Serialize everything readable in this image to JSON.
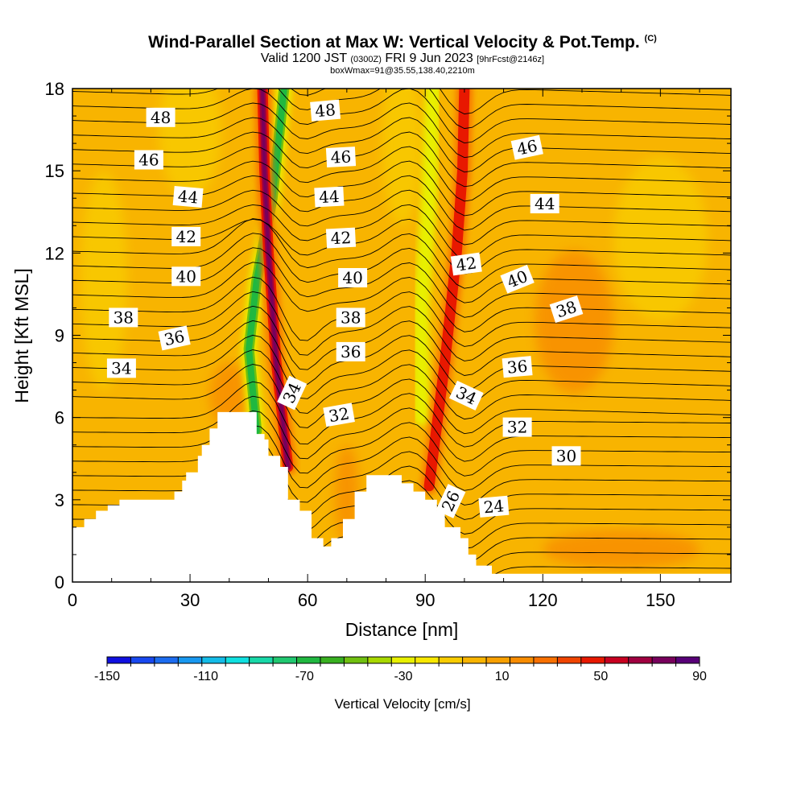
{
  "title": {
    "main": "Wind-Parallel Section at Max W: Vertical Velocity & Pot.Temp.",
    "copyright": "(C)",
    "valid_prefix": "Valid 1200 JST",
    "valid_utc": "(0300Z)",
    "valid_date": "FRI 9 Jun 2023",
    "forecast": "[9hrFcst@2146z]",
    "box_info": "boxWmax=91@35.55,138.40,2210m"
  },
  "chart_data": {
    "type": "heatmap",
    "xlabel": "Distance [nm]",
    "ylabel": "Height [Kft MSL]",
    "xlim": [
      0,
      168
    ],
    "ylim": [
      0,
      18
    ],
    "x_ticks": [
      "0",
      "30",
      "60",
      "90",
      "120",
      "150"
    ],
    "x_tick_values": [
      0,
      30,
      60,
      90,
      120,
      150
    ],
    "y_ticks": [
      "0",
      "3",
      "6",
      "9",
      "12",
      "15",
      "18"
    ],
    "y_tick_values": [
      0,
      3,
      6,
      9,
      12,
      15,
      18
    ],
    "colorbar": {
      "title": "Vertical Velocity [cm/s]",
      "labels": [
        "-150",
        "-110",
        "-70",
        "-30",
        "10",
        "50",
        "90"
      ],
      "label_values": [
        -150,
        -110,
        -70,
        -30,
        10,
        50,
        90
      ],
      "levels": [
        -150,
        -140,
        -130,
        -120,
        -110,
        -100,
        -90,
        -80,
        -70,
        -60,
        -50,
        -40,
        -30,
        -20,
        -10,
        0,
        10,
        20,
        30,
        40,
        50,
        60,
        70,
        80,
        90
      ],
      "colors": [
        "#1010e0",
        "#1848f0",
        "#1c6cf0",
        "#1898f0",
        "#14bce8",
        "#10e0e0",
        "#18d8a8",
        "#20c870",
        "#20b840",
        "#38b020",
        "#70c010",
        "#a8d800",
        "#e8f000",
        "#f8e800",
        "#f8cc00",
        "#f8b400",
        "#f8a000",
        "#f88c00",
        "#f87000",
        "#f04400",
        "#e81800",
        "#c80020",
        "#a00040",
        "#78005c",
        "#580078"
      ]
    },
    "background_value_cm_s": 5,
    "updraft_bands": [
      {
        "name": "band-1",
        "w_peak": 90,
        "path": [
          [
            55,
            4.2
          ],
          [
            52,
            8
          ],
          [
            50,
            12
          ],
          [
            49,
            15
          ],
          [
            48.5,
            18
          ]
        ]
      },
      {
        "name": "band-2",
        "w_peak": 55,
        "path": [
          [
            91,
            3.5
          ],
          [
            95,
            8
          ],
          [
            98,
            12
          ],
          [
            99.5,
            15
          ],
          [
            100,
            18
          ]
        ]
      }
    ],
    "downdraft_bands": [
      {
        "name": "band-1",
        "w_peak": -70,
        "path": [
          [
            47,
            5.5
          ],
          [
            45,
            8.5
          ],
          [
            47,
            11
          ],
          [
            51,
            14
          ],
          [
            54,
            18
          ]
        ]
      },
      {
        "name": "band-2",
        "w_peak": -40,
        "path": [
          [
            89,
            6
          ],
          [
            89,
            10
          ],
          [
            91,
            14
          ],
          [
            92,
            18
          ]
        ]
      }
    ],
    "terrain": [
      [
        0,
        1
      ],
      [
        0,
        2
      ],
      [
        3,
        2
      ],
      [
        3,
        2.3
      ],
      [
        6,
        2.3
      ],
      [
        6,
        2.6
      ],
      [
        9,
        2.6
      ],
      [
        9,
        2.8
      ],
      [
        12,
        2.8
      ],
      [
        12,
        3
      ],
      [
        26,
        3
      ],
      [
        26,
        3.3
      ],
      [
        28,
        3.3
      ],
      [
        28,
        3.7
      ],
      [
        29,
        3.7
      ],
      [
        29,
        4
      ],
      [
        32,
        4
      ],
      [
        32,
        4.6
      ],
      [
        33,
        4.6
      ],
      [
        33,
        5
      ],
      [
        35,
        5
      ],
      [
        35,
        5.6
      ],
      [
        37,
        5.6
      ],
      [
        37,
        6.2
      ],
      [
        47,
        6.2
      ],
      [
        47,
        5.4
      ],
      [
        49,
        5.4
      ],
      [
        49,
        5.2
      ],
      [
        50,
        5.2
      ],
      [
        50,
        4.6
      ],
      [
        53,
        4.6
      ],
      [
        53,
        4.2
      ],
      [
        55,
        4.2
      ],
      [
        55,
        3
      ],
      [
        58,
        3
      ],
      [
        58,
        2.6
      ],
      [
        61,
        2.6
      ],
      [
        61,
        1.6
      ],
      [
        64,
        1.6
      ],
      [
        64,
        1.3
      ],
      [
        66,
        1.3
      ],
      [
        66,
        1.6
      ],
      [
        69,
        1.6
      ],
      [
        69,
        2.3
      ],
      [
        72,
        2.3
      ],
      [
        72,
        3.3
      ],
      [
        75,
        3.3
      ],
      [
        75,
        3.9
      ],
      [
        84,
        3.9
      ],
      [
        84,
        3.6
      ],
      [
        87,
        3.6
      ],
      [
        87,
        3.3
      ],
      [
        90,
        3.3
      ],
      [
        90,
        3
      ],
      [
        93,
        3
      ],
      [
        93,
        2.6
      ],
      [
        95,
        2.6
      ],
      [
        95,
        2
      ],
      [
        99,
        2
      ],
      [
        99,
        1.6
      ],
      [
        101,
        1.6
      ],
      [
        101,
        1
      ],
      [
        103,
        1
      ],
      [
        103,
        0.6
      ],
      [
        107,
        0.6
      ],
      [
        107,
        0.3
      ],
      [
        168,
        0.3
      ],
      [
        168,
        0
      ],
      [
        0,
        0
      ]
    ],
    "theta_contours": [
      {
        "label": "48",
        "x": 22.5,
        "y": 16.95,
        "rot": 0
      },
      {
        "label": "48",
        "x": 64.5,
        "y": 17.2,
        "rot": -5
      },
      {
        "label": "46",
        "x": 19.5,
        "y": 15.4,
        "rot": 0
      },
      {
        "label": "46",
        "x": 68.5,
        "y": 15.5,
        "rot": -3
      },
      {
        "label": "46",
        "x": 116,
        "y": 15.85,
        "rot": -12
      },
      {
        "label": "44",
        "x": 29.5,
        "y": 14.05,
        "rot": 5
      },
      {
        "label": "44",
        "x": 65.5,
        "y": 14.05,
        "rot": -3
      },
      {
        "label": "44",
        "x": 120.5,
        "y": 13.8,
        "rot": 0
      },
      {
        "label": "42",
        "x": 29,
        "y": 12.6,
        "rot": 0
      },
      {
        "label": "42",
        "x": 68.5,
        "y": 12.55,
        "rot": -3
      },
      {
        "label": "42",
        "x": 100.5,
        "y": 11.6,
        "rot": -8
      },
      {
        "label": "40",
        "x": 29,
        "y": 11.15,
        "rot": 0
      },
      {
        "label": "40",
        "x": 71.5,
        "y": 11.1,
        "rot": 0
      },
      {
        "label": "40",
        "x": 113.5,
        "y": 11.05,
        "rot": -22
      },
      {
        "label": "38",
        "x": 13,
        "y": 9.65,
        "rot": 0
      },
      {
        "label": "38",
        "x": 71,
        "y": 9.65,
        "rot": 0
      },
      {
        "label": "38",
        "x": 126,
        "y": 9.95,
        "rot": -18
      },
      {
        "label": "36",
        "x": 26,
        "y": 8.9,
        "rot": -12
      },
      {
        "label": "36",
        "x": 71,
        "y": 8.4,
        "rot": 0
      },
      {
        "label": "36",
        "x": 113.5,
        "y": 7.85,
        "rot": -5
      },
      {
        "label": "34",
        "x": 12.5,
        "y": 7.8,
        "rot": 0
      },
      {
        "label": "34",
        "x": 56,
        "y": 6.9,
        "rot": -65
      },
      {
        "label": "34",
        "x": 100.5,
        "y": 6.8,
        "rot": 25
      },
      {
        "label": "32",
        "x": 68,
        "y": 6.1,
        "rot": -10
      },
      {
        "label": "32",
        "x": 113.5,
        "y": 5.65,
        "rot": 0
      },
      {
        "label": "30",
        "x": 126,
        "y": 4.6,
        "rot": 0
      },
      {
        "label": "26",
        "x": 96.5,
        "y": 2.95,
        "rot": -65
      },
      {
        "label": "24",
        "x": 107.5,
        "y": 2.75,
        "rot": -5
      }
    ]
  }
}
